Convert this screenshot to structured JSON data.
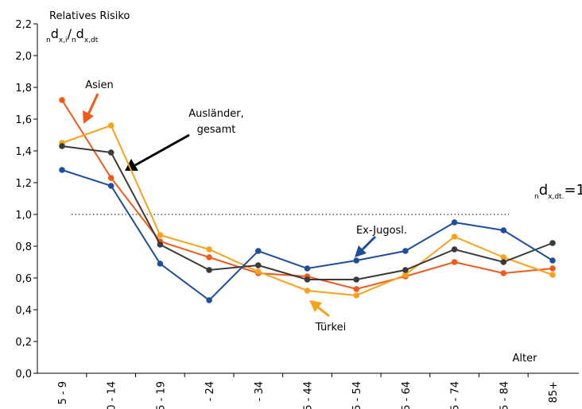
{
  "chart_data": {
    "type": "line",
    "y_label": "Relatives Risiko",
    "y_label_formula": [
      "n",
      "d",
      "x,i",
      "/",
      "n",
      "d",
      "x,dt"
    ],
    "x_label": "Alter",
    "reference": {
      "value": 1,
      "label": [
        "n",
        "d",
        "x,dt.",
        "=1"
      ]
    },
    "categories": [
      "5 - 9",
      "0 - 14",
      "5 - 19",
      "- 24",
      "- 34",
      "5 - 44",
      "5 - 54",
      "5 - 64",
      "5 - 74",
      "5 - 84",
      "85+"
    ],
    "series": [
      {
        "name": "Asien",
        "color": "#f05a1a",
        "values": [
          1.72,
          1.23,
          0.83,
          0.73,
          0.63,
          0.61,
          0.53,
          0.61,
          0.7,
          0.63,
          0.66
        ]
      },
      {
        "name": "Türkei",
        "color": "#f7a21b",
        "values": [
          1.45,
          1.56,
          0.87,
          0.78,
          0.64,
          0.52,
          0.49,
          0.62,
          0.86,
          0.73,
          0.62
        ]
      },
      {
        "name": "Ausländer, gesamt",
        "color": "#3a3a3a",
        "values": [
          1.43,
          1.39,
          0.81,
          0.65,
          0.68,
          0.59,
          0.59,
          0.65,
          0.78,
          0.7,
          0.82
        ]
      },
      {
        "name": "Ex-Jugosl.",
        "color": "#1f4e9c",
        "values": [
          1.28,
          1.18,
          0.69,
          0.46,
          0.77,
          0.66,
          0.71,
          0.77,
          0.95,
          0.9,
          0.71
        ]
      }
    ],
    "ylim": [
      0,
      2.2
    ],
    "yticks": [
      {
        "value": 0,
        "label": "0,0"
      },
      {
        "value": 0.2,
        "label": "0,2"
      },
      {
        "value": 0.4,
        "label": "0,4"
      },
      {
        "value": 0.6,
        "label": "0,6"
      },
      {
        "value": 0.8,
        "label": "0,8"
      },
      {
        "value": 1,
        "label": "1,0"
      },
      {
        "value": 1.2,
        "label": "1,2"
      },
      {
        "value": 1.4,
        "label": "1,4"
      },
      {
        "value": 1.6,
        "label": "1,6"
      },
      {
        "value": 1.8,
        "label": "1,8"
      },
      {
        "value": 2,
        "label": "2,0"
      },
      {
        "value": 2.2,
        "label": "2,2"
      }
    ]
  }
}
